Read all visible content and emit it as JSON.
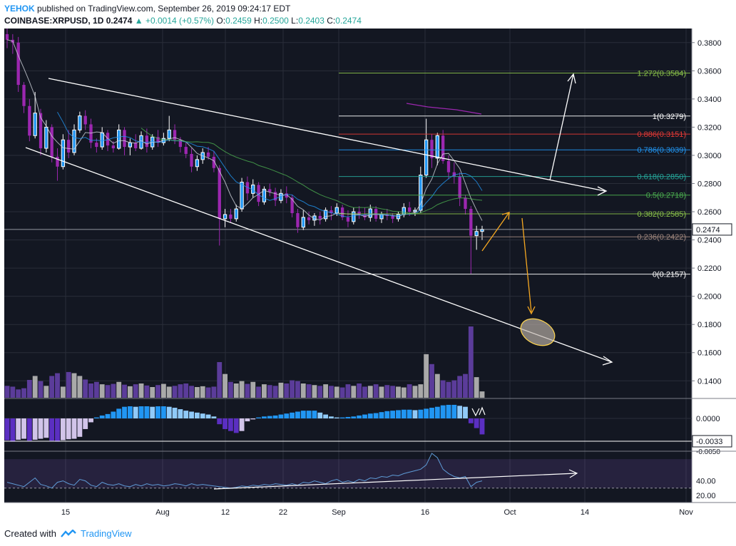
{
  "header": {
    "user": "YEHOK",
    "published": "published on TradingView.com, September 26, 2019 09:24:17 EDT",
    "symbol": "COINBASE:XRPUSD, 1D",
    "last": "0.2474",
    "change": "+0.0014 (+0.57%)",
    "o_label": "O:",
    "o": "0.2459",
    "h_label": "H:",
    "h": "0.2500",
    "l_label": "L:",
    "l": "0.2403",
    "c_label": "C:",
    "c": "0.2474"
  },
  "footer": {
    "created": "Created with",
    "brand": "TradingView"
  },
  "colors": {
    "background": "#131722",
    "grid": "#2a2e39",
    "candle_up": "#ffffff",
    "candle_down": "#9c27b0",
    "volume_up": "#a9a9a9",
    "volume_down": "#5b3c9a",
    "fib_1272": "#8bc34a",
    "fib_1": "#ffffff",
    "fib_0886": "#e53935",
    "fib_0786": "#2196f3",
    "fib_0618": "#26a69a",
    "fib_05": "#4caf50",
    "fib_0382": "#8bc34a",
    "fib_0236": "#a1887f",
    "fib_0": "#ffffff",
    "rsi": "#5e9bd6",
    "ellipse": "#ffd54f",
    "arrow_orange": "#f6a821"
  },
  "chart_data": {
    "type": "candlestick",
    "symbol": "COINBASE:XRPUSD",
    "interval": "1D",
    "x_tick_labels": [
      "15",
      "Aug",
      "12",
      "22",
      "Sep",
      "16",
      "Oct",
      "14",
      "Nov"
    ],
    "y_ticks": [
      "0.3800",
      "0.3600",
      "0.3400",
      "0.3200",
      "0.3000",
      "0.2800",
      "0.2600",
      "0.2400",
      "0.2200",
      "0.2000",
      "0.1800",
      "0.1600",
      "0.1400"
    ],
    "ylim": [
      0.128,
      0.39
    ],
    "last_price_label": "0.2474",
    "candles": [
      [
        0.386,
        0.39,
        0.376,
        0.382
      ],
      [
        0.382,
        0.386,
        0.372,
        0.38
      ],
      [
        0.38,
        0.384,
        0.345,
        0.35
      ],
      [
        0.35,
        0.352,
        0.33,
        0.335
      ],
      [
        0.335,
        0.34,
        0.31,
        0.314
      ],
      [
        0.314,
        0.345,
        0.312,
        0.33
      ],
      [
        0.33,
        0.333,
        0.3,
        0.305
      ],
      [
        0.305,
        0.325,
        0.302,
        0.32
      ],
      [
        0.32,
        0.322,
        0.295,
        0.299
      ],
      [
        0.299,
        0.305,
        0.282,
        0.292
      ],
      [
        0.292,
        0.315,
        0.29,
        0.311
      ],
      [
        0.311,
        0.318,
        0.298,
        0.302
      ],
      [
        0.302,
        0.322,
        0.3,
        0.318
      ],
      [
        0.318,
        0.331,
        0.316,
        0.328
      ],
      [
        0.328,
        0.332,
        0.318,
        0.322
      ],
      [
        0.322,
        0.326,
        0.305,
        0.309
      ],
      [
        0.309,
        0.312,
        0.302,
        0.306
      ],
      [
        0.306,
        0.32,
        0.304,
        0.316
      ],
      [
        0.316,
        0.318,
        0.303,
        0.307
      ],
      [
        0.307,
        0.31,
        0.302,
        0.305
      ],
      [
        0.305,
        0.322,
        0.304,
        0.318
      ],
      [
        0.318,
        0.32,
        0.3,
        0.306
      ],
      [
        0.306,
        0.312,
        0.3,
        0.309
      ],
      [
        0.309,
        0.315,
        0.303,
        0.305
      ],
      [
        0.305,
        0.317,
        0.304,
        0.314
      ],
      [
        0.314,
        0.319,
        0.302,
        0.306
      ],
      [
        0.306,
        0.315,
        0.304,
        0.313
      ],
      [
        0.313,
        0.318,
        0.306,
        0.309
      ],
      [
        0.309,
        0.316,
        0.307,
        0.312
      ],
      [
        0.312,
        0.328,
        0.31,
        0.318
      ],
      [
        0.318,
        0.322,
        0.308,
        0.311
      ],
      [
        0.311,
        0.313,
        0.302,
        0.306
      ],
      [
        0.306,
        0.309,
        0.298,
        0.301
      ],
      [
        0.301,
        0.305,
        0.288,
        0.292
      ],
      [
        0.292,
        0.3,
        0.289,
        0.297
      ],
      [
        0.297,
        0.305,
        0.294,
        0.302
      ],
      [
        0.302,
        0.306,
        0.297,
        0.299
      ],
      [
        0.299,
        0.303,
        0.288,
        0.291
      ],
      [
        0.291,
        0.293,
        0.236,
        0.255
      ],
      [
        0.255,
        0.262,
        0.249,
        0.258
      ],
      [
        0.258,
        0.262,
        0.252,
        0.255
      ],
      [
        0.255,
        0.265,
        0.253,
        0.262
      ],
      [
        0.262,
        0.284,
        0.26,
        0.281
      ],
      [
        0.281,
        0.285,
        0.268,
        0.273
      ],
      [
        0.273,
        0.283,
        0.27,
        0.279
      ],
      [
        0.279,
        0.281,
        0.264,
        0.267
      ],
      [
        0.267,
        0.278,
        0.265,
        0.276
      ],
      [
        0.276,
        0.28,
        0.271,
        0.274
      ],
      [
        0.274,
        0.277,
        0.264,
        0.268
      ],
      [
        0.268,
        0.276,
        0.266,
        0.273
      ],
      [
        0.273,
        0.278,
        0.266,
        0.27
      ],
      [
        0.27,
        0.272,
        0.256,
        0.259
      ],
      [
        0.259,
        0.262,
        0.245,
        0.249
      ],
      [
        0.249,
        0.261,
        0.247,
        0.256
      ],
      [
        0.256,
        0.26,
        0.251,
        0.254
      ],
      [
        0.254,
        0.259,
        0.25,
        0.257
      ],
      [
        0.257,
        0.26,
        0.251,
        0.255
      ],
      [
        0.255,
        0.263,
        0.253,
        0.261
      ],
      [
        0.261,
        0.264,
        0.254,
        0.259
      ],
      [
        0.259,
        0.266,
        0.257,
        0.263
      ],
      [
        0.263,
        0.265,
        0.254,
        0.256
      ],
      [
        0.256,
        0.261,
        0.249,
        0.253
      ],
      [
        0.253,
        0.263,
        0.251,
        0.26
      ],
      [
        0.26,
        0.264,
        0.255,
        0.258
      ],
      [
        0.258,
        0.263,
        0.254,
        0.256
      ],
      [
        0.256,
        0.265,
        0.253,
        0.262
      ],
      [
        0.262,
        0.264,
        0.253,
        0.255
      ],
      [
        0.255,
        0.26,
        0.252,
        0.258
      ],
      [
        0.258,
        0.262,
        0.254,
        0.257
      ],
      [
        0.257,
        0.259,
        0.252,
        0.255
      ],
      [
        0.255,
        0.26,
        0.253,
        0.258
      ],
      [
        0.258,
        0.266,
        0.256,
        0.263
      ],
      [
        0.263,
        0.267,
        0.257,
        0.26
      ],
      [
        0.26,
        0.263,
        0.257,
        0.261
      ],
      [
        0.261,
        0.292,
        0.259,
        0.286
      ],
      [
        0.286,
        0.326,
        0.284,
        0.311
      ],
      [
        0.311,
        0.315,
        0.291,
        0.298
      ],
      [
        0.298,
        0.316,
        0.293,
        0.314
      ],
      [
        0.314,
        0.318,
        0.294,
        0.296
      ],
      [
        0.296,
        0.3,
        0.283,
        0.288
      ],
      [
        0.288,
        0.295,
        0.28,
        0.285
      ],
      [
        0.285,
        0.288,
        0.264,
        0.27
      ],
      [
        0.27,
        0.272,
        0.258,
        0.262
      ],
      [
        0.262,
        0.264,
        0.216,
        0.243
      ],
      [
        0.243,
        0.25,
        0.233,
        0.246
      ],
      [
        0.246,
        0.25,
        0.24,
        0.2474
      ]
    ],
    "fib_levels": [
      {
        "label": "1.272(0.3584)",
        "value": 0.3584
      },
      {
        "label": "1(0.3279)",
        "value": 0.3279
      },
      {
        "label": "0.886(0.3151)",
        "value": 0.3151
      },
      {
        "label": "0.786(0.3039)",
        "value": 0.3039
      },
      {
        "label": "0.618(0.2850)",
        "value": 0.285
      },
      {
        "label": "0.5(0.2718)",
        "value": 0.2718
      },
      {
        "label": "0.382(0.2585)",
        "value": 0.2585
      },
      {
        "label": "0.236(0.2422)",
        "value": 0.2422
      },
      {
        "label": "0(0.2157)",
        "value": 0.2157
      }
    ],
    "volume": [
      30,
      28,
      21,
      24,
      45,
      55,
      42,
      30,
      55,
      62,
      28,
      65,
      62,
      55,
      46,
      36,
      40,
      34,
      32,
      35,
      40,
      33,
      29,
      34,
      36,
      31,
      27,
      32,
      35,
      28,
      30,
      34,
      36,
      30,
      27,
      29,
      26,
      28,
      90,
      60,
      40,
      36,
      42,
      35,
      40,
      28,
      34,
      32,
      30,
      38,
      36,
      44,
      42,
      36,
      34,
      32,
      30,
      34,
      30,
      28,
      26,
      34,
      30,
      36,
      28,
      30,
      34,
      28,
      32,
      30,
      28,
      26,
      34,
      30,
      34,
      110,
      85,
      60,
      44,
      40,
      44,
      55,
      60,
      180,
      52,
      16
    ],
    "macd": {
      "zero_label": "0.0000",
      "value_label": "-0.0033",
      "low_label": "-0.0050",
      "histogram": [
        -0.0045,
        -0.0048,
        -0.0044,
        -0.0042,
        -0.0046,
        -0.0044,
        -0.0042,
        -0.004,
        -0.0046,
        -0.0048,
        -0.0045,
        -0.0043,
        -0.0042,
        -0.0038,
        -0.0022,
        -0.0008,
        0.0002,
        0.0006,
        0.0009,
        0.0014,
        0.002,
        0.0024,
        0.0025,
        0.0024,
        0.0025,
        0.0025,
        0.0024,
        0.0025,
        0.0025,
        0.0024,
        0.0022,
        0.0019,
        0.0016,
        0.0014,
        0.0012,
        0.001,
        0.0008,
        0.0004,
        -0.0012,
        -0.0022,
        -0.0026,
        -0.003,
        -0.0026,
        -0.0006,
        -0.0002,
        0.0002,
        0.0004,
        0.0005,
        0.0006,
        0.0008,
        0.001,
        0.0012,
        0.0014,
        0.0016,
        0.0016,
        0.0016,
        0.0012,
        0.0008,
        0.0004,
        0.0002,
        0.0002,
        0.0003,
        0.0004,
        0.0006,
        0.0008,
        0.001,
        0.0011,
        0.0013,
        0.0015,
        0.0016,
        0.0017,
        0.0018,
        0.0018,
        0.0017,
        0.0018,
        0.002,
        0.0022,
        0.0024,
        0.0027,
        0.0028,
        0.0028,
        0.0026,
        0.0024,
        -0.001,
        -0.002,
        -0.0033
      ]
    },
    "rsi": {
      "y_ticks": [
        "40.00",
        "20.00"
      ],
      "values": [
        38,
        36,
        34,
        32,
        38,
        44,
        35,
        33,
        30,
        38,
        40,
        36,
        34,
        42,
        40,
        34,
        32,
        38,
        35,
        34,
        36,
        33,
        32,
        35,
        33,
        36,
        34,
        35,
        33,
        34,
        36,
        35,
        33,
        36,
        34,
        35,
        34,
        33,
        32,
        31,
        30,
        31,
        33,
        32,
        34,
        33,
        35,
        34,
        36,
        35,
        34,
        36,
        34,
        38,
        37,
        40,
        38,
        36,
        40,
        42,
        38,
        40,
        38,
        42,
        40,
        44,
        43,
        46,
        45,
        48,
        47,
        50,
        52,
        54,
        56,
        62,
        78,
        72,
        56,
        50,
        46,
        44,
        46,
        32,
        38,
        40
      ]
    },
    "overlay_labels": {
      "ema_note": ""
    }
  }
}
